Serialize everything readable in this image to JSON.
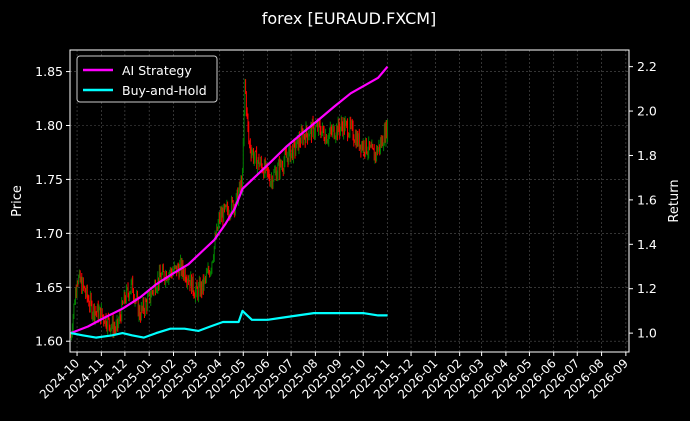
{
  "chart_data": {
    "type": "line",
    "title": "forex [EURAUD.FXCM]",
    "ylabel_left": "Price",
    "ylabel_right": "Return",
    "x_ticks": [
      "2024-10",
      "2024-11",
      "2024-12",
      "2025-01",
      "2025-02",
      "2025-03",
      "2025-04",
      "2025-05",
      "2025-06",
      "2025-07",
      "2025-08",
      "2025-09",
      "2025-10",
      "2025-11",
      "2025-12",
      "2026-01",
      "2026-02",
      "2026-03",
      "2026-04",
      "2026-05",
      "2026-06",
      "2026-07",
      "2026-08",
      "2026-09"
    ],
    "x_range": [
      "2024-09-22",
      "2026-09-05"
    ],
    "y_left_ticks": [
      1.6,
      1.65,
      1.7,
      1.75,
      1.8,
      1.85
    ],
    "y_left_ticks_text": [
      "1.60",
      "1.65",
      "1.70",
      "1.75",
      "1.80",
      "1.85"
    ],
    "y_left_range": [
      1.59,
      1.87
    ],
    "y_right_ticks": [
      1.0,
      1.2,
      1.4,
      1.6,
      1.8,
      2.0,
      2.2
    ],
    "y_right_ticks_text": [
      "1.0",
      "1.2",
      "1.4",
      "1.6",
      "1.8",
      "2.0",
      "2.2"
    ],
    "y_right_range": [
      0.915,
      2.275
    ],
    "grid": true,
    "legend_position": "top-left",
    "colors": {
      "background": "#000000",
      "up_candle": "#008000",
      "down_candle": "#ff0000",
      "ai_strategy": "#ff00ff",
      "buy_and_hold": "#00ffff",
      "grid": "#555555",
      "axis": "#ffffff"
    },
    "series": [
      {
        "name": "AI Strategy",
        "axis": "right",
        "points": [
          [
            "2024-09-23",
            1.0
          ],
          [
            "2024-10-15",
            1.03
          ],
          [
            "2024-11-05",
            1.07
          ],
          [
            "2024-11-28",
            1.11
          ],
          [
            "2024-12-20",
            1.16
          ],
          [
            "2025-01-10",
            1.22
          ],
          [
            "2025-02-01",
            1.27
          ],
          [
            "2025-02-20",
            1.31
          ],
          [
            "2025-03-10",
            1.37
          ],
          [
            "2025-03-25",
            1.42
          ],
          [
            "2025-04-08",
            1.49
          ],
          [
            "2025-04-20",
            1.56
          ],
          [
            "2025-04-30",
            1.65
          ],
          [
            "2025-05-15",
            1.7
          ],
          [
            "2025-06-05",
            1.77
          ],
          [
            "2025-06-25",
            1.84
          ],
          [
            "2025-07-15",
            1.9
          ],
          [
            "2025-08-05",
            1.96
          ],
          [
            "2025-08-25",
            2.02
          ],
          [
            "2025-09-15",
            2.08
          ],
          [
            "2025-10-05",
            2.12
          ],
          [
            "2025-10-20",
            2.15
          ],
          [
            "2025-11-01",
            2.2
          ]
        ]
      },
      {
        "name": "Buy-and-Hold",
        "axis": "right",
        "points": [
          [
            "2024-09-23",
            1.0
          ],
          [
            "2024-10-08",
            0.99
          ],
          [
            "2024-10-25",
            0.98
          ],
          [
            "2024-11-15",
            0.99
          ],
          [
            "2024-11-28",
            1.0
          ],
          [
            "2024-12-10",
            0.99
          ],
          [
            "2024-12-25",
            0.98
          ],
          [
            "2025-01-10",
            1.0
          ],
          [
            "2025-01-28",
            1.02
          ],
          [
            "2025-02-15",
            1.02
          ],
          [
            "2025-03-05",
            1.01
          ],
          [
            "2025-03-20",
            1.03
          ],
          [
            "2025-04-05",
            1.05
          ],
          [
            "2025-04-25",
            1.05
          ],
          [
            "2025-04-30",
            1.1
          ],
          [
            "2025-05-12",
            1.06
          ],
          [
            "2025-06-01",
            1.06
          ],
          [
            "2025-06-20",
            1.07
          ],
          [
            "2025-07-10",
            1.08
          ],
          [
            "2025-07-30",
            1.09
          ],
          [
            "2025-08-20",
            1.09
          ],
          [
            "2025-09-10",
            1.09
          ],
          [
            "2025-10-01",
            1.09
          ],
          [
            "2025-10-20",
            1.08
          ],
          [
            "2025-11-01",
            1.08
          ]
        ]
      }
    ],
    "price": {
      "axis": "left",
      "close_path": [
        [
          "2024-09-23",
          1.604
        ],
        [
          "2024-10-01",
          1.66
        ],
        [
          "2024-10-10",
          1.648
        ],
        [
          "2024-10-20",
          1.63
        ],
        [
          "2024-11-01",
          1.625
        ],
        [
          "2024-11-10",
          1.618
        ],
        [
          "2024-11-20",
          1.61
        ],
        [
          "2024-12-01",
          1.64
        ],
        [
          "2024-12-10",
          1.652
        ],
        [
          "2024-12-20",
          1.625
        ],
        [
          "2025-01-01",
          1.64
        ],
        [
          "2025-01-10",
          1.655
        ],
        [
          "2025-01-20",
          1.662
        ],
        [
          "2025-02-01",
          1.665
        ],
        [
          "2025-02-10",
          1.668
        ],
        [
          "2025-02-20",
          1.66
        ],
        [
          "2025-03-01",
          1.645
        ],
        [
          "2025-03-10",
          1.65
        ],
        [
          "2025-03-20",
          1.668
        ],
        [
          "2025-04-01",
          1.715
        ],
        [
          "2025-04-12",
          1.722
        ],
        [
          "2025-04-22",
          1.73
        ],
        [
          "2025-04-30",
          1.75
        ],
        [
          "2025-05-03",
          1.84
        ],
        [
          "2025-05-08",
          1.785
        ],
        [
          "2025-05-15",
          1.77
        ],
        [
          "2025-05-25",
          1.762
        ],
        [
          "2025-06-05",
          1.75
        ],
        [
          "2025-06-15",
          1.76
        ],
        [
          "2025-06-25",
          1.77
        ],
        [
          "2025-07-05",
          1.778
        ],
        [
          "2025-07-15",
          1.79
        ],
        [
          "2025-07-25",
          1.795
        ],
        [
          "2025-08-05",
          1.798
        ],
        [
          "2025-08-15",
          1.79
        ],
        [
          "2025-08-25",
          1.795
        ],
        [
          "2025-09-05",
          1.8
        ],
        [
          "2025-09-15",
          1.796
        ],
        [
          "2025-09-25",
          1.785
        ],
        [
          "2025-10-05",
          1.78
        ],
        [
          "2025-10-15",
          1.772
        ],
        [
          "2025-10-25",
          1.785
        ],
        [
          "2025-11-01",
          1.8
        ]
      ]
    }
  },
  "legend": [
    {
      "label": "AI Strategy",
      "color": "#ff00ff"
    },
    {
      "label": "Buy-and-Hold",
      "color": "#00ffff"
    }
  ]
}
